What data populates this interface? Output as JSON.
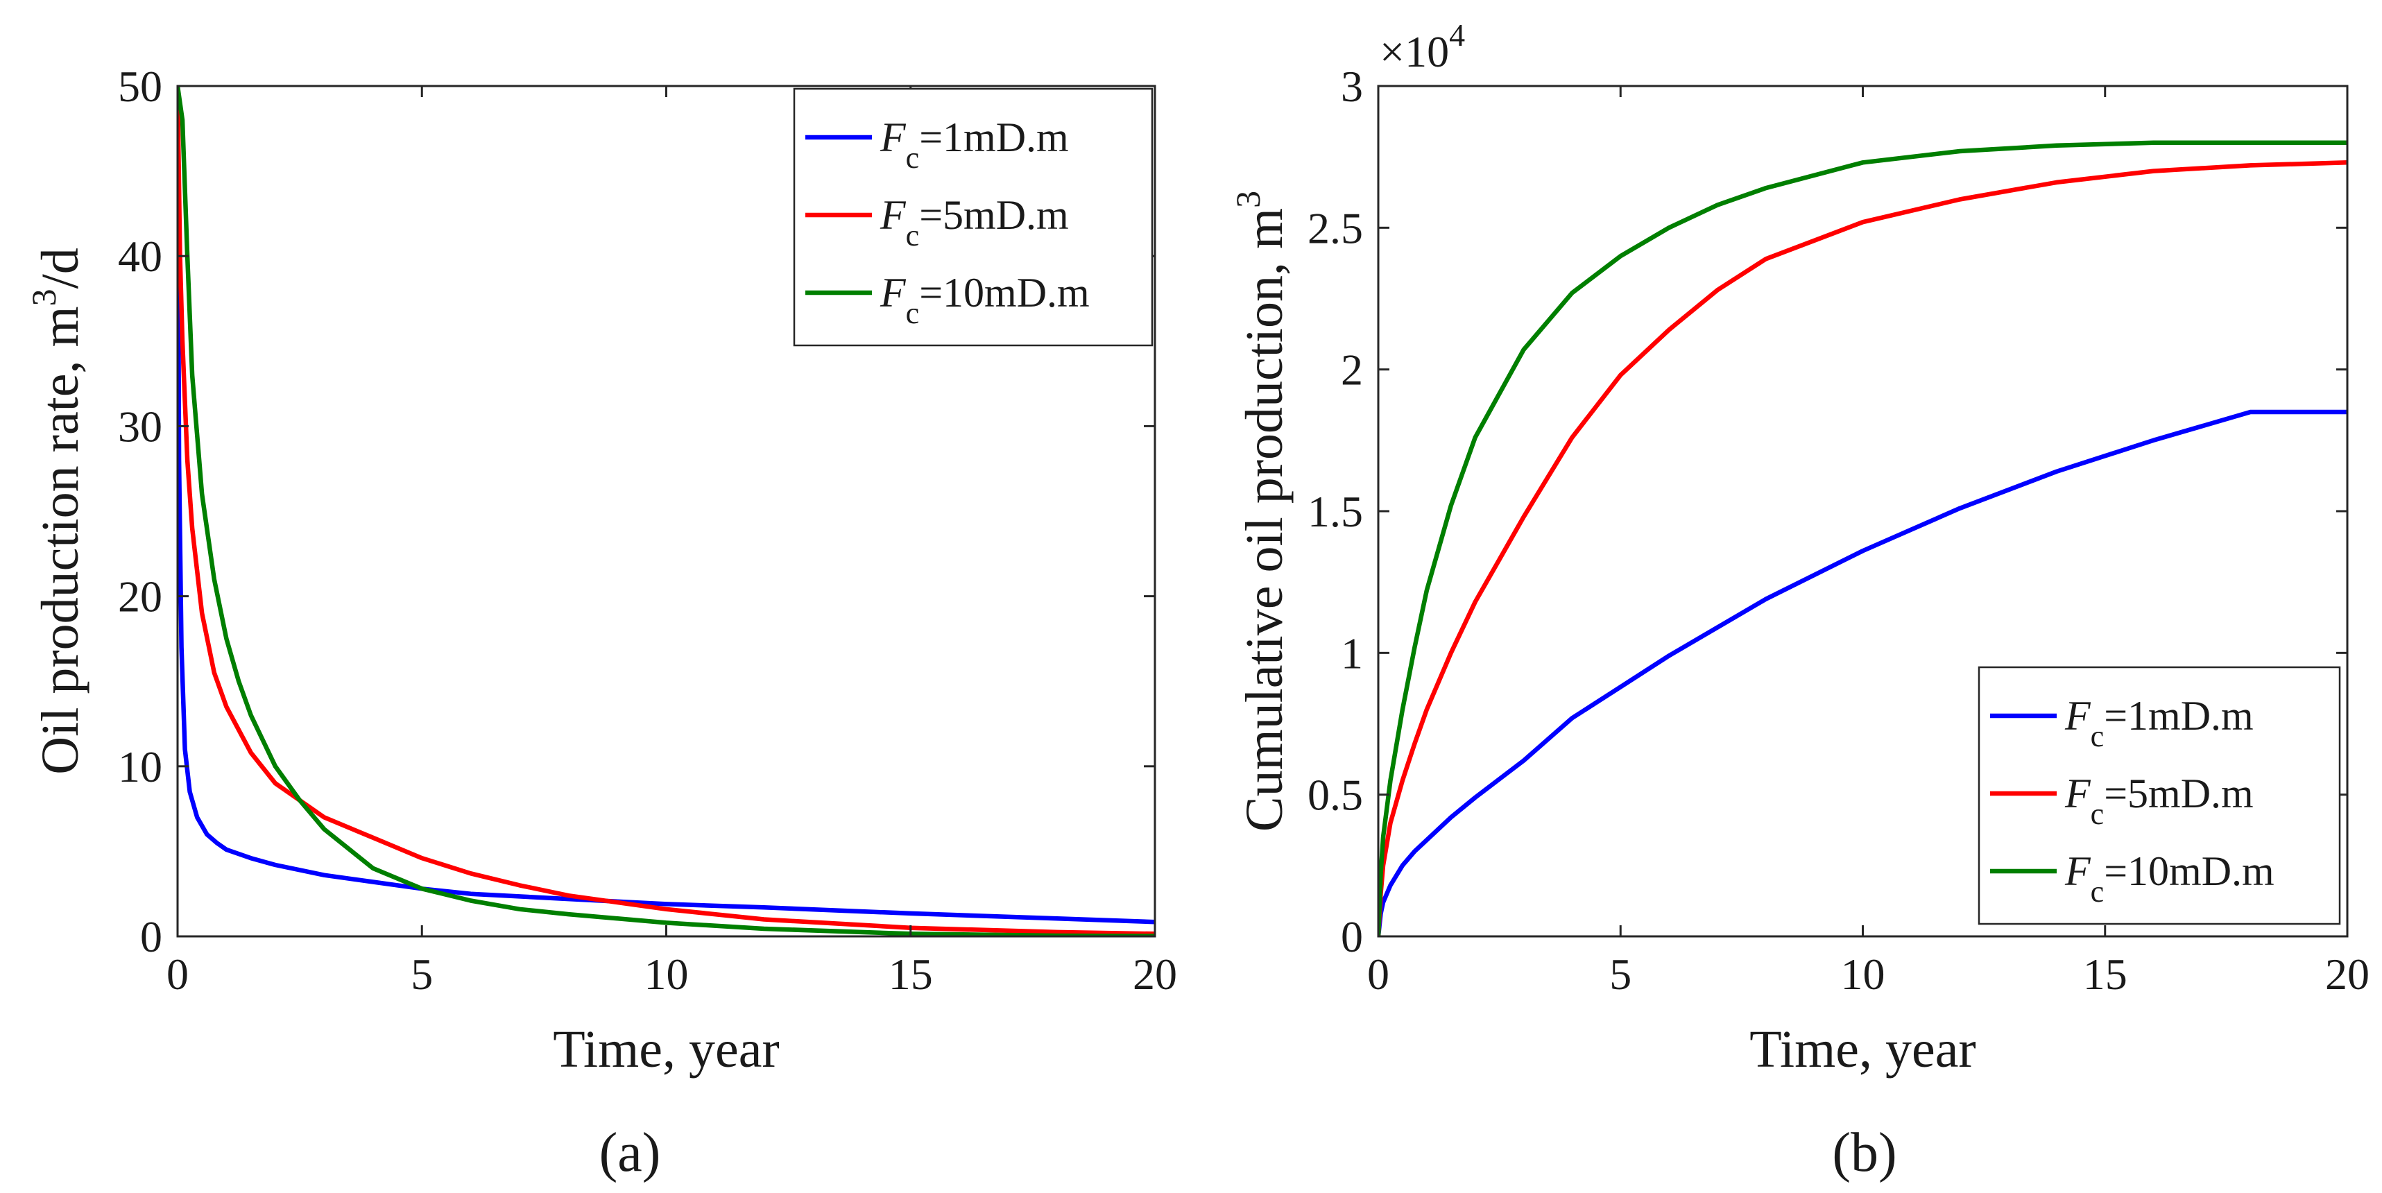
{
  "chart_data": [
    {
      "panel_label": "(a)",
      "type": "line",
      "title": "",
      "xlabel": "Time, year",
      "ylabel": "Oil production rate, m",
      "ylabel_sup": "3",
      "ylabel_tail": "/d",
      "xlim": [
        0,
        20
      ],
      "ylim": [
        0,
        50
      ],
      "xticks": [
        0,
        5,
        10,
        15,
        20
      ],
      "yticks": [
        0,
        10,
        20,
        30,
        40,
        50
      ],
      "grid": false,
      "legend_position": "top-right",
      "series": [
        {
          "name": "Fc=1mD.m",
          "label_main": "F",
          "label_sub": "c",
          "label_tail": "=1mD.m",
          "color": "#0000ff",
          "x": [
            0.0,
            0.03,
            0.08,
            0.15,
            0.25,
            0.4,
            0.6,
            0.8,
            1.0,
            1.5,
            2.0,
            3.0,
            4.0,
            5.0,
            6.0,
            8.0,
            10.0,
            12.0,
            15.0,
            18.0,
            20.0
          ],
          "y": [
            50,
            28,
            17,
            11,
            8.5,
            7.0,
            6.0,
            5.5,
            5.1,
            4.6,
            4.2,
            3.6,
            3.2,
            2.8,
            2.5,
            2.2,
            1.9,
            1.7,
            1.35,
            1.05,
            0.85
          ]
        },
        {
          "name": "Fc=5mD.m",
          "label_main": "F",
          "label_sub": "c",
          "label_tail": "=5mD.m",
          "color": "#ff0000",
          "x": [
            0.0,
            0.05,
            0.1,
            0.2,
            0.3,
            0.5,
            0.75,
            1.0,
            1.5,
            2.0,
            2.5,
            3.0,
            4.0,
            5.0,
            6.0,
            7.0,
            8.0,
            10.0,
            12.0,
            15.0,
            18.0,
            20.0
          ],
          "y": [
            50,
            40,
            35,
            28,
            24,
            19,
            15.5,
            13.5,
            10.8,
            9.0,
            8.0,
            7.0,
            5.8,
            4.6,
            3.7,
            3.0,
            2.4,
            1.6,
            1.0,
            0.5,
            0.25,
            0.15
          ]
        },
        {
          "name": "Fc=10mD.m",
          "label_main": "F",
          "label_sub": "c",
          "label_tail": "=10mD.m",
          "color": "#007f00",
          "x": [
            0.0,
            0.1,
            0.2,
            0.3,
            0.5,
            0.75,
            1.0,
            1.25,
            1.5,
            2.0,
            2.5,
            3.0,
            4.0,
            5.0,
            6.0,
            7.0,
            8.0,
            10.0,
            12.0,
            15.0,
            18.0,
            20.0
          ],
          "y": [
            50,
            48,
            40,
            33,
            26,
            21,
            17.5,
            15,
            13,
            10,
            8.0,
            6.3,
            4.0,
            2.8,
            2.1,
            1.6,
            1.3,
            0.8,
            0.45,
            0.15,
            0.04,
            0.02
          ]
        }
      ]
    },
    {
      "panel_label": "(b)",
      "type": "line",
      "title": "",
      "xlabel": "Time, year",
      "ylabel": "Cumulative oil production, m",
      "ylabel_sup": "3",
      "ylabel_tail": "",
      "y_multiplier_base": "×10",
      "y_multiplier_exp": "4",
      "xlim": [
        0,
        20
      ],
      "ylim": [
        0,
        3
      ],
      "xticks": [
        0,
        5,
        10,
        15,
        20
      ],
      "yticks": [
        0,
        0.5,
        1,
        1.5,
        2,
        2.5,
        3
      ],
      "ytick_labels": [
        "0",
        "0.5",
        "1",
        "1.5",
        "2",
        "2.5",
        "3"
      ],
      "grid": false,
      "legend_position": "bottom-right",
      "series": [
        {
          "name": "Fc=1mD.m",
          "label_main": "F",
          "label_sub": "c",
          "label_tail": "=1mD.m",
          "color": "#0000ff",
          "x": [
            0.0,
            0.05,
            0.1,
            0.25,
            0.5,
            0.75,
            1.0,
            1.5,
            2.0,
            3.0,
            4.0,
            5.0,
            6.0,
            7.0,
            8.0,
            10.0,
            12.0,
            14.0,
            16.0,
            18.0,
            20.0
          ],
          "y": [
            0.0,
            0.08,
            0.12,
            0.18,
            0.25,
            0.3,
            0.34,
            0.42,
            0.49,
            0.62,
            0.77,
            0.88,
            0.99,
            1.09,
            1.19,
            1.36,
            1.51,
            1.64,
            1.75,
            1.85,
            1.85
          ]
        },
        {
          "name": "Fc=5mD.m",
          "label_main": "F",
          "label_sub": "c",
          "label_tail": "=5mD.m",
          "color": "#ff0000",
          "x": [
            0.0,
            0.05,
            0.1,
            0.25,
            0.5,
            0.75,
            1.0,
            1.5,
            2.0,
            3.0,
            4.0,
            5.0,
            6.0,
            7.0,
            8.0,
            10.0,
            12.0,
            14.0,
            16.0,
            18.0,
            20.0
          ],
          "y": [
            0.0,
            0.15,
            0.25,
            0.4,
            0.55,
            0.68,
            0.8,
            1.0,
            1.18,
            1.48,
            1.76,
            1.98,
            2.14,
            2.28,
            2.39,
            2.52,
            2.6,
            2.66,
            2.7,
            2.72,
            2.73
          ]
        },
        {
          "name": "Fc=10mD.m",
          "label_main": "F",
          "label_sub": "c",
          "label_tail": "=10mD.m",
          "color": "#007f00",
          "x": [
            0.0,
            0.05,
            0.1,
            0.25,
            0.5,
            0.75,
            1.0,
            1.5,
            2.0,
            3.0,
            4.0,
            5.0,
            6.0,
            7.0,
            8.0,
            10.0,
            12.0,
            14.0,
            16.0,
            18.0,
            20.0
          ],
          "y": [
            0.0,
            0.22,
            0.35,
            0.55,
            0.8,
            1.02,
            1.22,
            1.52,
            1.76,
            2.07,
            2.27,
            2.4,
            2.5,
            2.58,
            2.64,
            2.73,
            2.77,
            2.79,
            2.8,
            2.8,
            2.8
          ]
        }
      ]
    }
  ]
}
